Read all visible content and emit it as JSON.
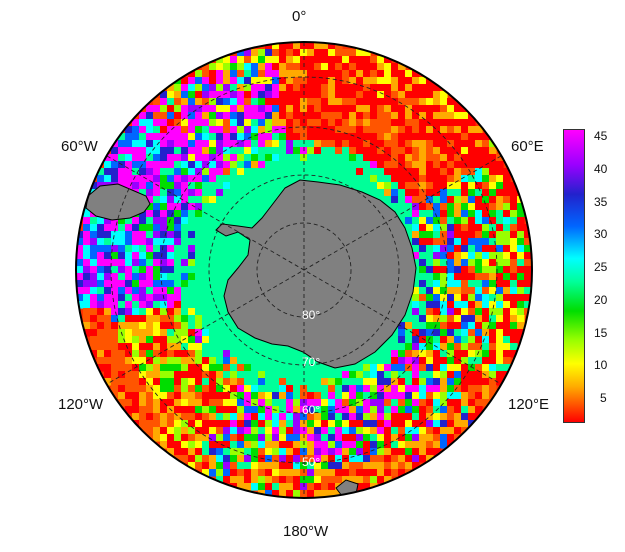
{
  "longitude_labels": [
    {
      "id": "lon-0",
      "text": "0°"
    },
    {
      "id": "lon-60e",
      "text": "60°E"
    },
    {
      "id": "lon-120e",
      "text": "120°E"
    },
    {
      "id": "lon-180w",
      "text": "180°W"
    },
    {
      "id": "lon-120w",
      "text": "120°W"
    },
    {
      "id": "lon-60w",
      "text": "60°W"
    }
  ],
  "latitude_labels": [
    "80°",
    "70°",
    "60°",
    "50°"
  ],
  "colorbar": {
    "ticks": [
      "45",
      "40",
      "35",
      "30",
      "25",
      "20",
      "15",
      "10",
      "5"
    ],
    "range": [
      1,
      46
    ],
    "colors": [
      "#ff00ff",
      "#9900ff",
      "#2222cc",
      "#0066ff",
      "#00ffff",
      "#00ff99",
      "#00dd00",
      "#99ff00",
      "#ffff00",
      "#ffaa00",
      "#ff0000"
    ]
  },
  "colors": {
    "land": "#808080",
    "coast": "#000000",
    "graticule": "#222222"
  }
}
